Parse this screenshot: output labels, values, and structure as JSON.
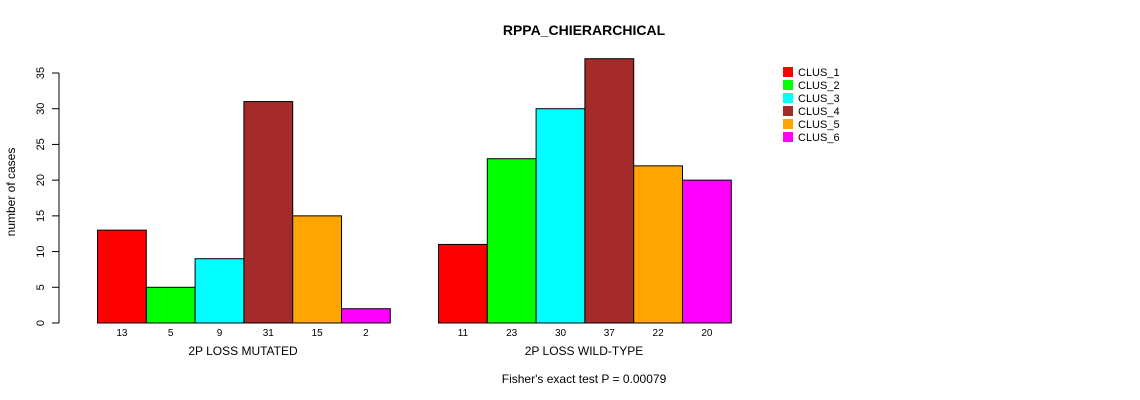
{
  "chart_data": {
    "type": "bar",
    "title": "RPPA_CHIERARCHICAL",
    "ylabel": "number of cases",
    "ylim": [
      0,
      35
    ],
    "yticks": [
      0,
      5,
      10,
      15,
      20,
      25,
      30,
      35
    ],
    "clusters": [
      "CLUS_1",
      "CLUS_2",
      "CLUS_3",
      "CLUS_4",
      "CLUS_5",
      "CLUS_6"
    ],
    "colors": [
      "#ff0000",
      "#00ff00",
      "#00ffff",
      "#a52a2a",
      "#ffa500",
      "#ff00ff"
    ],
    "groups": [
      {
        "name": "2P LOSS MUTATED",
        "values": [
          13,
          5,
          9,
          31,
          15,
          2
        ]
      },
      {
        "name": "2P LOSS WILD-TYPE",
        "values": [
          11,
          23,
          30,
          37,
          22,
          20
        ]
      }
    ],
    "legend_position": "top-right",
    "footnote": "Fisher's exact test P = 0.00079"
  }
}
